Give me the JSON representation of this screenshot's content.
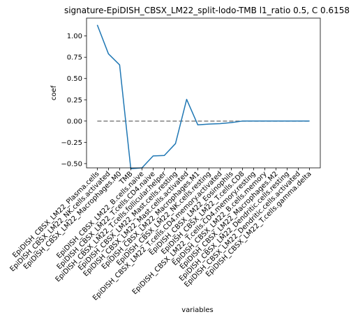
{
  "chart_data": {
    "type": "line",
    "title": "signature-EpiDISH_CBSX_LM22_split-lodo-TMB l1_ratio 0.5, C 0.6158",
    "xlabel": "variables",
    "ylabel": "coef",
    "ylim": [
      -0.55,
      1.21
    ],
    "yticks": [
      -0.5,
      -0.25,
      0.0,
      0.25,
      0.5,
      0.75,
      1.0
    ],
    "ytick_labels": [
      "−0.50",
      "−0.25",
      "0.00",
      "0.25",
      "0.50",
      "0.75",
      "1.00"
    ],
    "categories": [
      "EpiDISH_CBSX_LM22_Plasma.cells",
      "EpiDISH_CBSX_LM22_NK.cells.activated",
      "EpiDISH_CBSX_LM22_Macrophages.M0",
      "TMB",
      "EpiDISH_CBSX_LM22_B.cells.naive",
      "EpiDISH_CBSX_LM22_T.cells.CD4.naive",
      "EpiDISH_CBSX_LM22_T.cells.follicular.helper",
      "EpiDISH_CBSX_LM22_Mast.cells.resting",
      "EpiDISH_CBSX_LM22_Mast.cells.activated",
      "EpiDISH_CBSX_LM22_Macrophages.M1",
      "EpiDISH_CBSX_LM22_NK.cells.resting",
      "EpiDISH_CBSX_LM22_T.cells.CD4.memory.activated",
      "EpiDISH_CBSX_LM22_Eosinophils",
      "EpiDISH_CBSX_LM22_T.cells.CD8",
      "EpiDISH_CBSX_LM22_T.cells.CD4.memory.resting",
      "EpiDISH_CBSX_LM22_B.cells.memory",
      "EpiDISH_CBSX_LM22_Macrophages.M2",
      "EpiDISH_CBSX_LM22_Dendritic.cells.resting",
      "EpiDISH_CBSX_LM22_Dendritic.cells.activated",
      "EpiDISH_CBSX_LM22_T.cells.gamma.delta"
    ],
    "series": [
      {
        "values": [
          1.13,
          0.79,
          0.66,
          -0.56,
          -0.55,
          -0.41,
          -0.405,
          -0.265,
          0.255,
          -0.045,
          -0.035,
          -0.03,
          -0.018,
          0.0,
          0.0,
          0.0,
          0.0,
          0.0,
          0.0,
          0.0
        ],
        "color": "#1f77b4"
      }
    ],
    "reference_line": {
      "y": 0.0,
      "style": "dashed",
      "color": "#808080"
    },
    "grid": false,
    "legend": "none"
  }
}
